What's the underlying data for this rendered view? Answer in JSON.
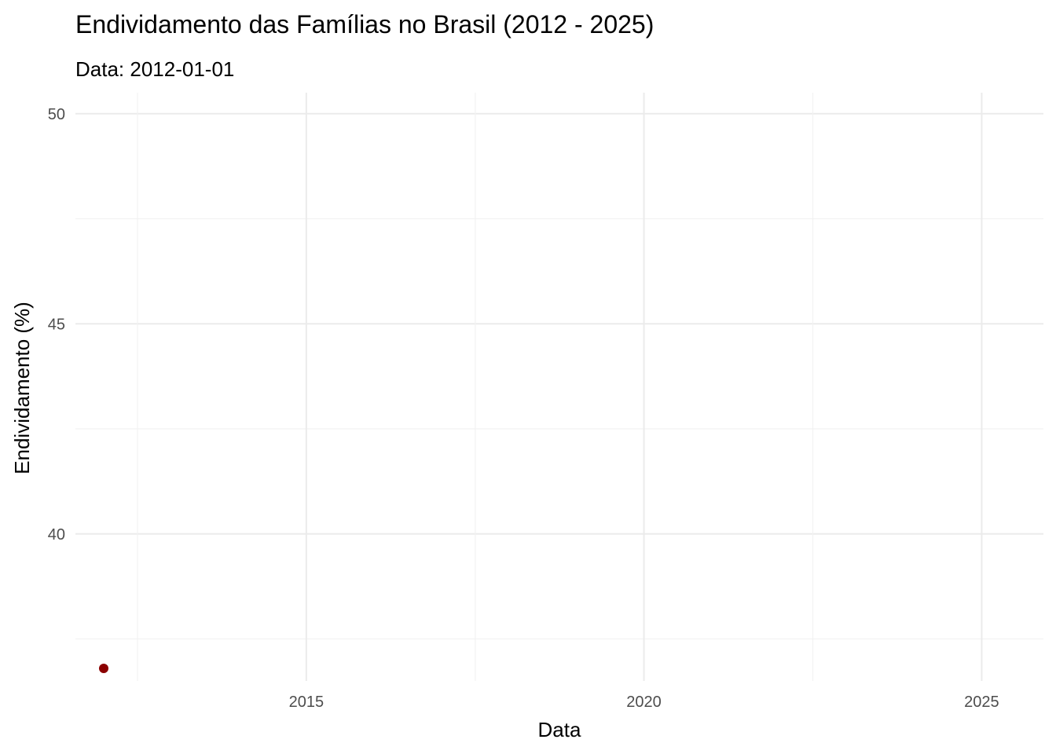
{
  "chart_data": {
    "type": "scatter",
    "title": "Endividamento das Famílias no Brasil (2012 - 2025)",
    "subtitle": "Data: 2012-01-01",
    "xlabel": "Data",
    "ylabel": "Endividamento (%)",
    "x_ticks": [
      "2015",
      "2020",
      "2025"
    ],
    "y_ticks": [
      "40",
      "45",
      "50"
    ],
    "xlim": [
      "2011-08-01",
      "2025-12-01"
    ],
    "ylim": [
      36.5,
      50.5
    ],
    "grid": true,
    "points": [
      {
        "x": "2012-01-01",
        "y": 36.8
      }
    ],
    "point_color": "#8b0000",
    "grid_color": "#ebebeb"
  }
}
